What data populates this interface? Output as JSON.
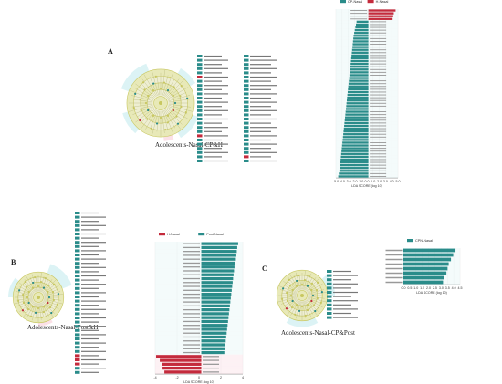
{
  "panels": [
    {
      "letter": "A",
      "caption": "Adolescents-Nasal-CP&H"
    },
    {
      "letter": "B",
      "caption": "Adolescents-Nasal-Post&H"
    },
    {
      "letter": "C",
      "caption": "Adolescents-Nasal-CP&Post"
    }
  ],
  "lda_axis_label": "LDA SCORE (log 10)",
  "legend": {
    "A": [
      "CP-Nasal",
      "H-Nasal"
    ],
    "B": [
      "H-Nasal",
      "Post-Nasal"
    ],
    "C": [
      "CPN-Nasal"
    ]
  },
  "colors": {
    "teal": "#2a8c8a",
    "red": "#c42a3c",
    "cyan_highlight": "#bfe9ec",
    "pink_highlight": "#f7c8d3",
    "olive": "#c8c760",
    "olive_light": "#e8e9b8"
  },
  "chart_data": [
    {
      "type": "bar",
      "panel": "A",
      "orientation": "horizontal",
      "series": [
        {
          "name": "CP-Nasal",
          "values": [
            -5.1,
            -5.0,
            -4.9,
            -4.85,
            -4.8,
            -4.75,
            -4.7,
            -4.65,
            -4.6,
            -4.55,
            -4.5,
            -4.45,
            -4.4,
            -4.35,
            -4.3,
            -4.25,
            -4.2,
            -4.15,
            -4.1,
            -4.05,
            -4.0,
            -3.95,
            -3.9,
            -3.85,
            -3.8,
            -3.75,
            -3.7,
            -3.65,
            -3.6,
            -3.55,
            -3.5,
            -3.45,
            -3.4,
            -3.35,
            -3.3,
            -3.25,
            -3.2,
            -3.15,
            -3.1,
            -3.05,
            -3.0,
            -2.95,
            -2.9,
            -2.85,
            -2.8,
            -2.75,
            -2.7,
            -2.65,
            -2.6,
            -2.55,
            -2.5,
            -2.4,
            -2.3,
            -2.2,
            -2.1,
            -2.0
          ]
        },
        {
          "name": "H-Nasal",
          "values": [
            4.6,
            4.3,
            4.2,
            4.1
          ]
        }
      ],
      "xlim": [
        -5.5,
        5
      ],
      "xticks": [
        "-5.0",
        "-4.0",
        "-3.0",
        "-2.0",
        "-1.0",
        "0.0",
        "1.0",
        "2.0",
        "3.0",
        "4.0",
        "5.0"
      ],
      "xlabel": "LDA SCORE (log 10)"
    },
    {
      "type": "bar",
      "panel": "B",
      "orientation": "horizontal",
      "series": [
        {
          "name": "H-Nasal",
          "values": [
            -4.9,
            -4.5,
            -4.3,
            -4.2,
            -4.0
          ]
        },
        {
          "name": "Post-Nasal",
          "values": [
            4.0,
            3.9,
            3.85,
            3.8,
            3.75,
            3.7,
            3.6,
            3.55,
            3.5,
            3.45,
            3.4,
            3.35,
            3.3,
            3.25,
            3.2,
            3.15,
            3.1,
            3.05,
            3.0,
            2.95,
            2.9,
            2.85,
            2.8,
            2.75,
            2.7,
            2.65,
            2.6,
            2.55,
            2.5
          ]
        }
      ],
      "xlim": [
        -5,
        4.5
      ],
      "xticks": [
        "-4",
        "-2",
        "0",
        "2",
        "4"
      ],
      "xlabel": "LDA SCORE (log 10)"
    },
    {
      "type": "bar",
      "panel": "C",
      "orientation": "horizontal",
      "series": [
        {
          "name": "CPN-Nasal",
          "values": [
            4.6,
            4.4,
            4.2,
            4.0,
            3.9,
            3.8,
            3.6,
            3.5
          ]
        }
      ],
      "xlim": [
        0,
        5
      ],
      "xticks": [
        "0.0",
        "0.5",
        "1.0",
        "1.5",
        "2.0",
        "2.5",
        "3.0",
        "3.5",
        "4.0",
        "4.5"
      ],
      "xlabel": "LDA SCORE (log 10)"
    }
  ]
}
